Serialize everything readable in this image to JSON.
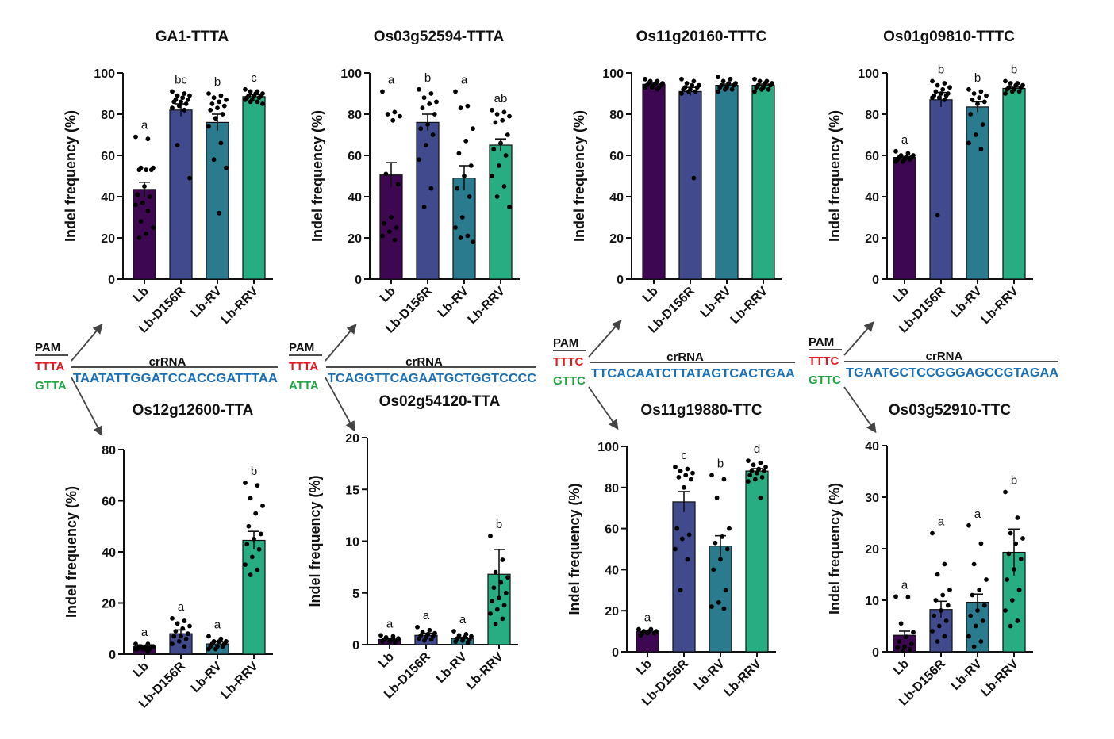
{
  "figure": {
    "ylabel": "Indel frequency (%)",
    "colors": {
      "Lb": "#3e0751",
      "Lb-D156R": "#414a8c",
      "Lb-RV": "#2a7b8e",
      "Lb-RRV": "#27ad81"
    }
  },
  "chart_data": [
    {
      "type": "bar",
      "title": "GA1-TTTA",
      "categories": [
        "Lb",
        "Lb-D156R",
        "Lb-RV",
        "Lb-RRV"
      ],
      "values": [
        43.5,
        82,
        76,
        88.5
      ],
      "errors": [
        3.5,
        3,
        4,
        1
      ],
      "sig": [
        "a",
        "bc",
        "b",
        "c"
      ],
      "ylim": [
        0,
        100
      ],
      "yticks": [
        0,
        20,
        40,
        60,
        80,
        100
      ],
      "points": [
        [
          69,
          68,
          54,
          54,
          53,
          53,
          53,
          45,
          41,
          40,
          37,
          36,
          33,
          28,
          25,
          22,
          20
        ],
        [
          91,
          90,
          89,
          89,
          88,
          87,
          87,
          86,
          86,
          85,
          84,
          83,
          82,
          65,
          49
        ],
        [
          90,
          89,
          88,
          87,
          86,
          85,
          84,
          83,
          82,
          80,
          78,
          74,
          66,
          58,
          54,
          32
        ],
        [
          92,
          91,
          91,
          90,
          90,
          89,
          89,
          89,
          88,
          88,
          87,
          87,
          86,
          86,
          85
        ]
      ]
    },
    {
      "type": "bar",
      "title": "Os03g52594-TTTA",
      "categories": [
        "Lb",
        "Lb-D156R",
        "Lb-RV",
        "Lb-RRV"
      ],
      "values": [
        50.5,
        76,
        49,
        65
      ],
      "errors": [
        6,
        4,
        6,
        3
      ],
      "sig": [
        "a",
        "b",
        "a",
        "ab"
      ],
      "ylim": [
        0,
        100
      ],
      "yticks": [
        0,
        20,
        40,
        60,
        80,
        100
      ],
      "points": [
        [
          91,
          81,
          80,
          79,
          77,
          51,
          46,
          30,
          27,
          25,
          23,
          21,
          19
        ],
        [
          92,
          90,
          88,
          86,
          85,
          83,
          80,
          75,
          73,
          70,
          65,
          58,
          44,
          35
        ],
        [
          91,
          84,
          83,
          73,
          67,
          61,
          55,
          50,
          44,
          40,
          30,
          25,
          21,
          20,
          18
        ],
        [
          82,
          81,
          80,
          79,
          77,
          76,
          70,
          66,
          63,
          60,
          55,
          50,
          45,
          40,
          35
        ]
      ]
    },
    {
      "type": "bar",
      "title": "Os11g20160-TTTC",
      "categories": [
        "Lb",
        "Lb-D156R",
        "Lb-RV",
        "Lb-RRV"
      ],
      "values": [
        94.5,
        91,
        94,
        94
      ],
      "errors": [
        0.5,
        2,
        0.6,
        0.6
      ],
      "sig": [
        "",
        "",
        "",
        ""
      ],
      "ylim": [
        0,
        100
      ],
      "yticks": [
        0,
        20,
        40,
        60,
        80,
        100
      ],
      "points": [
        [
          97,
          96,
          96,
          95,
          95,
          95,
          94,
          94,
          94,
          93,
          93,
          93,
          92
        ],
        [
          97,
          96,
          95,
          94,
          94,
          93,
          93,
          92,
          92,
          91,
          91,
          90,
          49
        ],
        [
          98,
          97,
          96,
          95,
          95,
          94,
          94,
          93,
          93,
          92,
          92,
          91
        ],
        [
          97,
          96,
          96,
          95,
          95,
          94,
          94,
          93,
          93,
          92,
          92,
          91
        ]
      ]
    },
    {
      "type": "bar",
      "title": "Os01g09810-TTTC",
      "categories": [
        "Lb",
        "Lb-D156R",
        "Lb-RV",
        "Lb-RRV"
      ],
      "values": [
        59,
        87,
        83.5,
        92.5
      ],
      "errors": [
        0.5,
        3.5,
        2.5,
        0.6
      ],
      "sig": [
        "a",
        "b",
        "b",
        "b"
      ],
      "ylim": [
        0,
        100
      ],
      "yticks": [
        0,
        20,
        40,
        60,
        80,
        100
      ],
      "points": [
        [
          62,
          61,
          60,
          60,
          59,
          59,
          59,
          58,
          58,
          58,
          57,
          57
        ],
        [
          96,
          95,
          94,
          93,
          92,
          91,
          90,
          90,
          89,
          89,
          88,
          88,
          87,
          31
        ],
        [
          92,
          91,
          90,
          89,
          88,
          87,
          86,
          85,
          80,
          75,
          70,
          66,
          63
        ],
        [
          96,
          95,
          95,
          94,
          94,
          93,
          93,
          92,
          92,
          91,
          91,
          90
        ]
      ]
    },
    {
      "type": "bar",
      "title": "Os12g12600-TTA",
      "categories": [
        "Lb",
        "Lb-D156R",
        "Lb-RV",
        "Lb-RRV"
      ],
      "values": [
        3,
        8,
        4,
        44.5
      ],
      "errors": [
        0.5,
        1.5,
        0.8,
        3.5
      ],
      "sig": [
        "a",
        "a",
        "a",
        "b"
      ],
      "ylim": [
        0,
        80
      ],
      "yticks": [
        0,
        20,
        40,
        60,
        80
      ],
      "points": [
        [
          4,
          4,
          3,
          3,
          3,
          3,
          3,
          2,
          2,
          2,
          2,
          2,
          1
        ],
        [
          14,
          13,
          12,
          11,
          10,
          9,
          8,
          7,
          7,
          6,
          5,
          4,
          3
        ],
        [
          7,
          6,
          5,
          5,
          5,
          4,
          4,
          3,
          3,
          3,
          2,
          2
        ],
        [
          67,
          66,
          61,
          58,
          55,
          50,
          47,
          45,
          43,
          41,
          38,
          35,
          33,
          31
        ]
      ]
    },
    {
      "type": "bar",
      "title": "Os02g54120-TTA",
      "categories": [
        "Lb",
        "Lb-D156R",
        "Lb-RV",
        "Lb-RRV"
      ],
      "values": [
        0.5,
        0.9,
        0.6,
        6.8
      ],
      "errors": [
        0.1,
        0.2,
        0.1,
        2.4
      ],
      "sig": [
        "a",
        "a",
        "a",
        "b"
      ],
      "ylim": [
        0,
        20
      ],
      "yticks": [
        0,
        5,
        10,
        15,
        20
      ],
      "points": [
        [
          0.9,
          0.8,
          0.7,
          0.6,
          0.5,
          0.5,
          0.4,
          0.3,
          0.3,
          0.2
        ],
        [
          1.7,
          1.4,
          1.2,
          1.1,
          1.0,
          0.9,
          0.8,
          0.7,
          0.6,
          0.5,
          0.4
        ],
        [
          1.3,
          1.0,
          0.9,
          0.8,
          0.7,
          0.6,
          0.5,
          0.4,
          0.3,
          0.2
        ],
        [
          10.5,
          8.2,
          7.0,
          6.5,
          6.0,
          5.5,
          5.0,
          4.5,
          4.2,
          3.8,
          3.4,
          3.0,
          2.5,
          2.0
        ]
      ]
    },
    {
      "type": "bar",
      "title": "Os11g19880-TTC",
      "categories": [
        "Lb",
        "Lb-D156R",
        "Lb-RV",
        "Lb-RRV"
      ],
      "values": [
        10,
        73,
        51.5,
        88
      ],
      "errors": [
        0.5,
        5,
        5,
        1.2
      ],
      "sig": [
        "a",
        "c",
        "b",
        "d"
      ],
      "ylim": [
        0,
        100
      ],
      "yticks": [
        0,
        20,
        40,
        60,
        80,
        100
      ],
      "points": [
        [
          11,
          11,
          10,
          10,
          10,
          9,
          9,
          9,
          8
        ],
        [
          90,
          89,
          88,
          87,
          86,
          85,
          84,
          80,
          60,
          57,
          55,
          50,
          45,
          30
        ],
        [
          86,
          84,
          75,
          60,
          56,
          53,
          50,
          45,
          40,
          30,
          24,
          22,
          21
        ],
        [
          93,
          92,
          91,
          90,
          89,
          88,
          88,
          87,
          86,
          85,
          84,
          83,
          75
        ]
      ]
    },
    {
      "type": "bar",
      "title": "Os03g52910-TTC",
      "categories": [
        "Lb",
        "Lb-D156R",
        "Lb-RV",
        "Lb-RRV"
      ],
      "values": [
        3.2,
        8.2,
        9.6,
        19.3
      ],
      "errors": [
        0.8,
        1.6,
        1.6,
        4.5
      ],
      "sig": [
        "a",
        "a",
        "a",
        "b"
      ],
      "ylim": [
        0,
        40
      ],
      "yticks": [
        0,
        10,
        20,
        30,
        40
      ],
      "points": [
        [
          10.7,
          10.6,
          5.5,
          3.8,
          2.9,
          2.0,
          1.5,
          1.0,
          0.8,
          0.5,
          0.3
        ],
        [
          23,
          17,
          15,
          12,
          11,
          10,
          9,
          8,
          7,
          6,
          5,
          4,
          3,
          2
        ],
        [
          24.5,
          21,
          17,
          14,
          12,
          11,
          9,
          8,
          7,
          6,
          5,
          3,
          2,
          1
        ],
        [
          31,
          26,
          23,
          22,
          21,
          19,
          18,
          16,
          14,
          12,
          10,
          8,
          6,
          5
        ]
      ]
    }
  ],
  "pam_panels": [
    {
      "pam": "PAM",
      "pam1": "TTTA",
      "pam2": "GTTA",
      "crrna": "crRNA",
      "seq": "TAATATTGGATCCACCGATTTAA"
    },
    {
      "pam": "PAM",
      "pam1": "TTTA",
      "pam2": "ATTA",
      "crrna": "crRNA",
      "seq": "TCAGGTTCAGAATGCTGGTCCCC"
    },
    {
      "pam": "PAM",
      "pam1": "TTTC",
      "pam2": "GTTC",
      "crrna": "crRNA",
      "seq": "TTCACAATCTTATAGTCACTGAA"
    },
    {
      "pam": "PAM",
      "pam1": "TTTC",
      "pam2": "GTTC",
      "crrna": "crRNA",
      "seq": "TGAATGCTCCGGGAGCCGTAGAA"
    }
  ]
}
